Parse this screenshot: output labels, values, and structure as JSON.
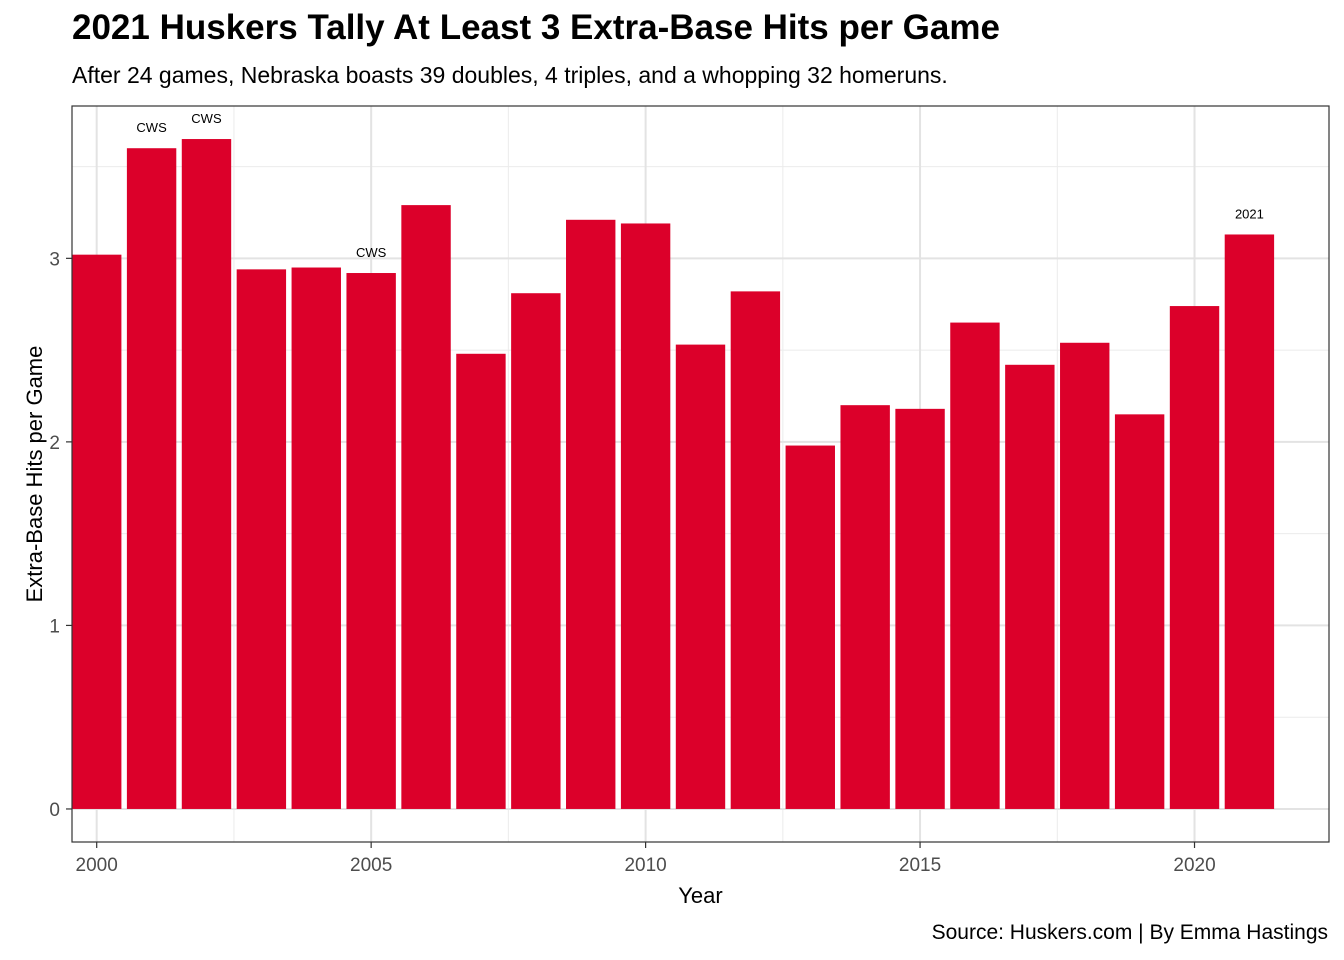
{
  "chart_data": {
    "type": "bar",
    "title": "2021 Huskers Tally At Least 3 Extra-Base Hits per Game",
    "subtitle": "After 24 games, Nebraska boasts 39 doubles, 4 triples, and a whopping 32 homeruns.",
    "caption": "Source: Huskers.com | By Emma Hastings",
    "xlabel": "Year",
    "ylabel": "Extra-Base Hits per Game",
    "x": [
      2000,
      2001,
      2002,
      2003,
      2004,
      2005,
      2006,
      2007,
      2008,
      2009,
      2010,
      2011,
      2012,
      2013,
      2014,
      2015,
      2016,
      2017,
      2018,
      2019,
      2020,
      2021
    ],
    "values": [
      3.02,
      3.6,
      3.65,
      2.94,
      2.95,
      2.92,
      3.29,
      2.48,
      2.81,
      3.21,
      3.19,
      2.53,
      2.82,
      1.98,
      2.2,
      2.18,
      2.65,
      2.42,
      2.54,
      2.15,
      2.74,
      3.13
    ],
    "annotations": [
      {
        "x": 2001,
        "label": "CWS"
      },
      {
        "x": 2002,
        "label": "CWS"
      },
      {
        "x": 2005,
        "label": "CWS"
      },
      {
        "x": 2021,
        "label": "2021"
      }
    ],
    "x_ticks": [
      2000,
      2005,
      2010,
      2015,
      2020
    ],
    "y_ticks": [
      0,
      1,
      2,
      3
    ],
    "xlim": [
      1999.55,
      2022.45
    ],
    "ylim": [
      -0.18,
      3.83
    ],
    "bar_color": "#dc002a",
    "grid": true,
    "theme": "bw"
  }
}
